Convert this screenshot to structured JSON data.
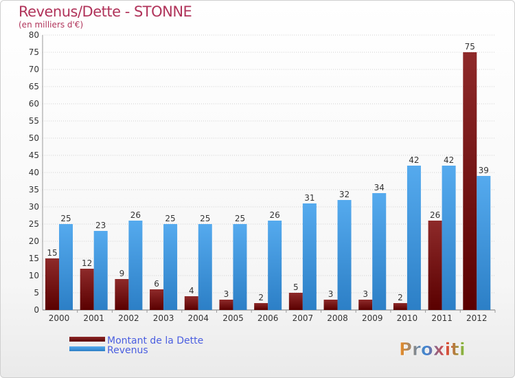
{
  "title": "Revenus/Dette - STONNE",
  "subtitle": "(en milliers d'€)",
  "colors": {
    "dette": "#7a1515",
    "revenus": "#3d95dc",
    "title": "#b0335a",
    "legend_text": "#4a5ee0"
  },
  "logo_text": "Proxiti",
  "chart_data": {
    "type": "bar",
    "categories": [
      "2000",
      "2001",
      "2002",
      "2003",
      "2004",
      "2005",
      "2006",
      "2007",
      "2008",
      "2009",
      "2010",
      "2011",
      "2012"
    ],
    "series": [
      {
        "name": "Montant de la Dette",
        "values": [
          15,
          12,
          9,
          6,
          4,
          3,
          2,
          5,
          3,
          3,
          2,
          26,
          75
        ]
      },
      {
        "name": "Revenus",
        "values": [
          25,
          23,
          26,
          25,
          25,
          25,
          26,
          31,
          32,
          34,
          42,
          42,
          39
        ]
      }
    ],
    "ylim": [
      0,
      80
    ],
    "yticks": [
      "0",
      "5",
      "10",
      "15",
      "20",
      "25",
      "30",
      "35",
      "40",
      "45",
      "50",
      "55",
      "60",
      "65",
      "70",
      "75",
      "80"
    ],
    "grid": true,
    "legend": "bottom-left"
  }
}
